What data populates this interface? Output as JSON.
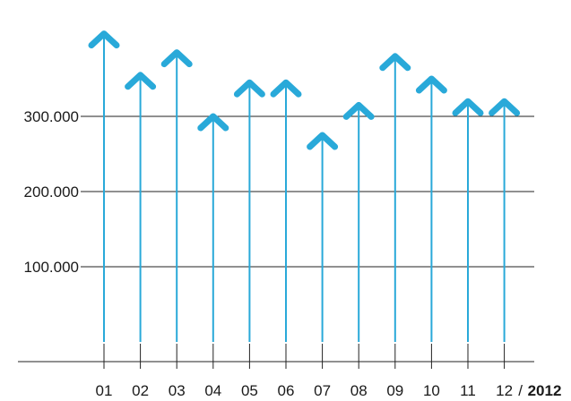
{
  "chart_data": {
    "type": "bar",
    "categories": [
      "01",
      "02",
      "03",
      "04",
      "05",
      "06",
      "07",
      "08",
      "09",
      "10",
      "11",
      "12"
    ],
    "values": [
      410000,
      355000,
      385000,
      300000,
      345000,
      345000,
      275000,
      315000,
      380000,
      350000,
      320000,
      320000
    ],
    "title": "",
    "xlabel": "",
    "ylabel": "",
    "ylim": [
      0,
      420000
    ],
    "y_ticks": [
      100000,
      200000,
      300000
    ],
    "y_tick_labels": [
      "100.000",
      "200.000",
      "300.000"
    ],
    "x_suffix_separator": "/",
    "x_suffix_year": "2012",
    "grid": true,
    "mark_style": "arrow",
    "colors": {
      "series": "#29a9d9",
      "grid": "#222222",
      "text": "#1a1a1a"
    }
  }
}
